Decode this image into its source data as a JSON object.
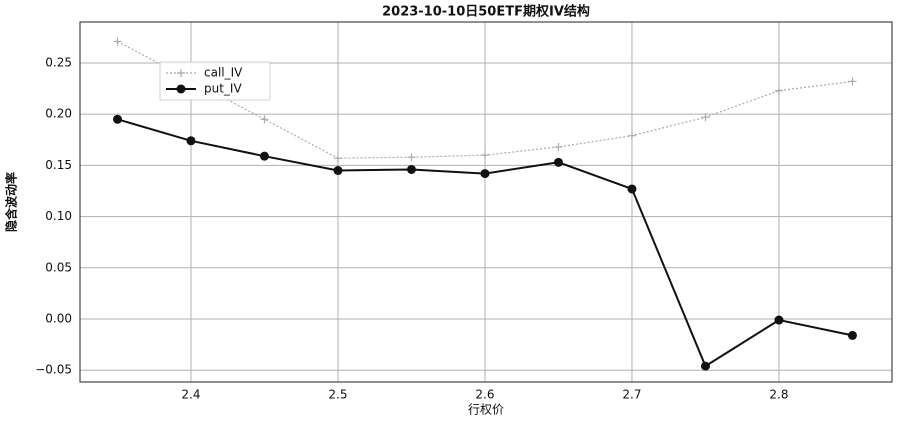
{
  "chart_data": {
    "type": "line",
    "title": "2023-10-10日50ETF期权IV结构",
    "x_label": "行权价",
    "y_label": "隐含波动率",
    "x": [
      2.35,
      2.4,
      2.45,
      2.5,
      2.55,
      2.6,
      2.65,
      2.7,
      2.75,
      2.8,
      2.85
    ],
    "series": [
      {
        "name": "call_IV",
        "color": "#aaaaaa",
        "style": "dotted",
        "marker": "plus",
        "values": [
          0.271,
          0.233,
          0.195,
          0.157,
          0.158,
          0.16,
          0.168,
          0.179,
          0.197,
          0.223,
          0.232
        ]
      },
      {
        "name": "put_IV",
        "color": "#111111",
        "style": "solid",
        "marker": "circle",
        "values": [
          0.195,
          0.174,
          0.159,
          0.145,
          0.146,
          0.142,
          0.153,
          0.127,
          -0.046,
          -0.001,
          -0.016
        ]
      }
    ],
    "xlim": [
      2.3245,
      2.8769
    ],
    "ylim": [
      -0.0615,
      0.29
    ],
    "xticks": [
      2.4,
      2.5,
      2.6,
      2.7,
      2.8
    ],
    "yticks": [
      {
        "value": -0.05,
        "label": "−0.05"
      },
      {
        "value": 0,
        "label": "0.00"
      },
      {
        "value": 0.05,
        "label": "0.05"
      },
      {
        "value": 0.1,
        "label": "0.10"
      },
      {
        "value": 0.15,
        "label": "0.15"
      },
      {
        "value": 0.2,
        "label": "0.20"
      },
      {
        "value": 0.25,
        "label": "0.25"
      }
    ],
    "grid": true,
    "legend": "upper left"
  }
}
